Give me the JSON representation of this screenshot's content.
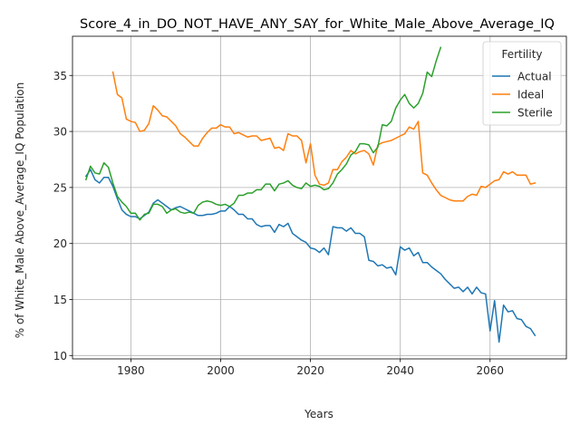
{
  "chart_data": {
    "type": "line",
    "title": "Score_4_in_DO_NOT_HAVE_ANY_SAY_for_White_Male_Above_Average_IQ",
    "xlabel": "Years",
    "ylabel": "% of White_Male Above_Average_IQ Population",
    "xlim": [
      1967,
      2077
    ],
    "ylim": [
      9.7,
      38.5
    ],
    "xticks": [
      1980,
      2000,
      2020,
      2040,
      2060
    ],
    "yticks": [
      10,
      15,
      20,
      25,
      30,
      35
    ],
    "grid": true,
    "legend": {
      "title": "Fertility",
      "placement": "top-right"
    },
    "series": [
      {
        "name": "Actual",
        "color": "#1f77b4",
        "x": [
          1970,
          1971,
          1972,
          1973,
          1974,
          1975,
          1976,
          1977,
          1978,
          1979,
          1980,
          1981,
          1982,
          1983,
          1984,
          1985,
          1986,
          1987,
          1988,
          1989,
          1990,
          1991,
          1992,
          1993,
          1994,
          1995,
          1996,
          1997,
          1998,
          1999,
          2000,
          2001,
          2002,
          2003,
          2004,
          2005,
          2006,
          2007,
          2008,
          2009,
          2010,
          2011,
          2012,
          2013,
          2014,
          2015,
          2016,
          2017,
          2018,
          2019,
          2020,
          2021,
          2022,
          2023,
          2024,
          2025,
          2026,
          2027,
          2028,
          2029,
          2030,
          2031,
          2032,
          2033,
          2034,
          2035,
          2036,
          2037,
          2038,
          2039,
          2040,
          2041,
          2042,
          2043,
          2044,
          2045,
          2046,
          2047,
          2048,
          2049,
          2050,
          2051,
          2052,
          2053,
          2054,
          2055,
          2056,
          2057,
          2058,
          2059,
          2060,
          2061,
          2062,
          2063,
          2064,
          2065,
          2066,
          2067,
          2068,
          2069,
          2070
        ],
        "values": [
          26.0,
          26.6,
          25.7,
          25.4,
          25.9,
          25.9,
          25.1,
          24.0,
          23.0,
          22.6,
          22.4,
          22.4,
          22.2,
          22.5,
          22.8,
          23.6,
          23.9,
          23.6,
          23.3,
          23.0,
          23.2,
          23.3,
          23.1,
          22.9,
          22.7,
          22.5,
          22.5,
          22.6,
          22.6,
          22.7,
          22.9,
          22.9,
          23.3,
          23.0,
          22.6,
          22.6,
          22.2,
          22.2,
          21.7,
          21.5,
          21.6,
          21.6,
          21.0,
          21.7,
          21.5,
          21.8,
          20.9,
          20.6,
          20.3,
          20.1,
          19.6,
          19.5,
          19.2,
          19.6,
          19.0,
          21.5,
          21.4,
          21.4,
          21.1,
          21.4,
          20.9,
          20.9,
          20.6,
          18.5,
          18.4,
          18.0,
          18.1,
          17.8,
          17.9,
          17.2,
          19.7,
          19.4,
          19.6,
          18.9,
          19.2,
          18.3,
          18.3,
          17.9,
          17.6,
          17.3,
          16.8,
          16.4,
          16.0,
          16.1,
          15.7,
          16.1,
          15.5,
          16.1,
          15.6,
          15.5,
          12.2,
          14.9,
          11.2,
          14.5,
          13.9,
          14.0,
          13.3,
          13.2,
          12.6,
          12.4,
          11.8
        ]
      },
      {
        "name": "Ideal",
        "color": "#ff7f0e",
        "x": [
          1976,
          1977,
          1978,
          1979,
          1980,
          1981,
          1982,
          1983,
          1984,
          1985,
          1986,
          1987,
          1988,
          1989,
          1990,
          1991,
          1992,
          1993,
          1994,
          1995,
          1996,
          1997,
          1998,
          1999,
          2000,
          2001,
          2002,
          2003,
          2004,
          2005,
          2006,
          2007,
          2008,
          2009,
          2010,
          2011,
          2012,
          2013,
          2014,
          2015,
          2016,
          2017,
          2018,
          2019,
          2020,
          2021,
          2022,
          2023,
          2024,
          2025,
          2026,
          2027,
          2028,
          2029,
          2030,
          2031,
          2032,
          2033,
          2034,
          2035,
          2036,
          2037,
          2038,
          2039,
          2040,
          2041,
          2042,
          2043,
          2044,
          2045,
          2046,
          2047,
          2048,
          2049,
          2050,
          2051,
          2052,
          2053,
          2054,
          2055,
          2056,
          2057,
          2058,
          2059,
          2060,
          2061,
          2062,
          2063,
          2064,
          2065,
          2066,
          2067,
          2068,
          2069,
          2070
        ],
        "values": [
          35.3,
          33.3,
          33.0,
          31.1,
          30.9,
          30.8,
          30.0,
          30.1,
          30.7,
          32.3,
          31.9,
          31.4,
          31.3,
          30.9,
          30.5,
          29.8,
          29.5,
          29.1,
          28.7,
          28.7,
          29.4,
          29.9,
          30.3,
          30.3,
          30.6,
          30.4,
          30.4,
          29.8,
          29.9,
          29.7,
          29.5,
          29.6,
          29.6,
          29.2,
          29.3,
          29.4,
          28.5,
          28.6,
          28.3,
          29.8,
          29.6,
          29.6,
          29.2,
          27.2,
          28.9,
          26.1,
          25.3,
          25.2,
          25.4,
          26.6,
          26.6,
          27.3,
          27.7,
          28.3,
          28.0,
          28.2,
          28.3,
          28.0,
          27.0,
          28.8,
          29.0,
          29.1,
          29.2,
          29.4,
          29.6,
          29.8,
          30.4,
          30.2,
          30.9,
          26.3,
          26.1,
          25.4,
          24.8,
          24.3,
          24.1,
          23.9,
          23.8,
          23.8,
          23.8,
          24.2,
          24.4,
          24.3,
          25.1,
          25.0,
          25.3,
          25.6,
          25.7,
          26.4,
          26.2,
          26.4,
          26.1,
          26.1,
          26.1,
          25.3,
          25.4
        ]
      },
      {
        "name": "Sterile",
        "color": "#2ca02c",
        "x": [
          1970,
          1971,
          1972,
          1973,
          1974,
          1975,
          1976,
          1977,
          1978,
          1979,
          1980,
          1981,
          1982,
          1983,
          1984,
          1985,
          1986,
          1987,
          1988,
          1989,
          1990,
          1991,
          1992,
          1993,
          1994,
          1995,
          1996,
          1997,
          1998,
          1999,
          2000,
          2001,
          2002,
          2003,
          2004,
          2005,
          2006,
          2007,
          2008,
          2009,
          2010,
          2011,
          2012,
          2013,
          2014,
          2015,
          2016,
          2017,
          2018,
          2019,
          2020,
          2021,
          2022,
          2023,
          2024,
          2025,
          2026,
          2027,
          2028,
          2029,
          2030,
          2031,
          2032,
          2033,
          2034,
          2035,
          2036,
          2037,
          2038,
          2039,
          2040,
          2041,
          2042,
          2043,
          2044,
          2045,
          2046,
          2047,
          2048,
          2049,
          2050
        ],
        "values": [
          25.7,
          26.9,
          26.3,
          26.2,
          27.2,
          26.8,
          25.4,
          24.2,
          23.7,
          23.3,
          22.7,
          22.7,
          22.1,
          22.6,
          22.7,
          23.5,
          23.5,
          23.3,
          22.7,
          23.0,
          23.1,
          22.8,
          22.7,
          22.8,
          22.7,
          23.4,
          23.7,
          23.8,
          23.7,
          23.5,
          23.4,
          23.5,
          23.3,
          23.6,
          24.3,
          24.3,
          24.5,
          24.5,
          24.8,
          24.8,
          25.3,
          25.3,
          24.7,
          25.3,
          25.4,
          25.6,
          25.2,
          25.0,
          24.9,
          25.4,
          25.1,
          25.2,
          25.1,
          24.8,
          24.9,
          25.4,
          26.2,
          26.6,
          27.1,
          27.9,
          28.2,
          28.9,
          28.9,
          28.8,
          28.1,
          28.6,
          30.6,
          30.5,
          30.9,
          32.1,
          32.8,
          33.3,
          32.5,
          32.1,
          32.5,
          33.4,
          35.3,
          34.9,
          36.3,
          37.5,
          null
        ]
      }
    ]
  }
}
